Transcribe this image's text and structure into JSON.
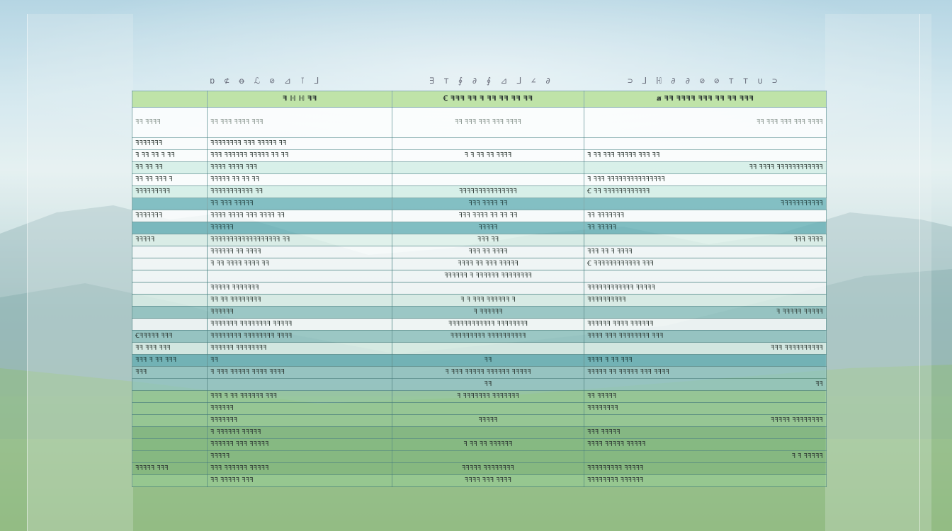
{
  "header": {
    "labels": [
      "ɒ ⊄ ꝋ ℒ ⊘ ⊿ ⊺ ⅃",
      "∃ ⊤ ∮ ∂ ∮ ⊿ ⅃ ∠ ∂",
      "⊃ ⅃ ℍ ∂ ∂ ⊘ ⊘ ⊤ ⊤ ∪ ⊃"
    ]
  },
  "table": {
    "head": [
      "ꟻ ℍ ℍ ꟻꟻ",
      "Ꞓ ꟻꟻꟻ ꟻꟻ ꟻ ꟻꟻ ꟻꟻ ꟻꟻ ꟻꟻ",
      "ⱥ ꟻꟻ ꟻꟻꟻꟻ ꟻꟻꟻ ꟻꟻ ꟻꟻ ꟻꟻꟻ"
    ],
    "rows": [
      {
        "style": "tall",
        "cells": [
          "ꟻꟻ ꟻꟻꟻꟻ",
          "ꟻꟻ ꟻꟻꟻ ꟻꟻꟻꟻ ꟻꟻꟻ",
          "ꟻꟻ ꟻꟻꟻ ꟻꟻꟻ ꟻꟻꟻ ꟻꟻꟻꟻ",
          "ꟻꟻ ꟻꟻꟻ ꟻꟻꟻ ꟻꟻꟻ ꟻꟻꟻꟻ"
        ]
      },
      {
        "style": "white",
        "cells": [
          "ꟻꟻꟻꟻꟻꟻꟻ",
          "ꟻꟻꟻꟻꟻꟻꟻꟻ ꟻꟻꟻ ꟻꟻꟻꟻꟻ ꟻꟻ",
          "",
          ""
        ]
      },
      {
        "style": "white",
        "cells": [
          "ꟻ ꟻꟻ ꟻꟻ ꟻ ꟻꟻ",
          "ꟻꟻꟻ ꟻꟻꟻꟻꟻꟻ ꟻꟻꟻꟻꟻ ꟻꟻ ꟻꟻ",
          "ꟻ ꟻ ꟻꟻ ꟻꟻ ꟻꟻꟻꟻ",
          "ꟻ ꟻꟻ ꟻꟻꟻ ꟻꟻꟻꟻꟻ ꟻꟻꟻ ꟻꟻ"
        ]
      },
      {
        "style": "mint",
        "cells": [
          "ꟻꟻ ꟻꟻ ꟻꟻ",
          "ꟻꟻꟻꟻ ꟻꟻꟻꟻ ꟻꟻꟻ",
          "",
          "ꟻꟻ ꟻꟻꟻꟻ ꟻꟻꟻꟻꟻꟻꟻꟻꟻꟻꟻꟻ"
        ]
      },
      {
        "style": "white",
        "cells": [
          "ꟻꟻ ꟻꟻ ꟻꟻꟻ ꟻ",
          "ꟻꟻꟻꟻꟻ ꟻꟻ ꟻꟻ ꟻꟻ",
          "",
          "ꟻ ꟻꟻꟻ ꟻꟻꟻꟻꟻꟻꟻꟻꟻꟻꟻꟻꟻꟻꟻ"
        ]
      },
      {
        "style": "mint",
        "cells": [
          "ꟻꟻꟻꟻꟻꟻꟻꟻꟻ",
          "ꟻꟻꟻꟻꟻꟻꟻꟻꟻꟻꟻ ꟻꟻ",
          "ꟻꟻꟻꟻꟻꟻꟻꟻꟻꟻꟻꟻꟻꟻꟻ",
          "Ꞓ ꟻꟻ ꟻꟻꟻꟻꟻꟻꟻꟻꟻꟻꟻꟻ"
        ]
      },
      {
        "style": "teal",
        "cells": [
          "",
          "ꟻꟻ ꟻꟻꟻ ꟻꟻꟻꟻꟻ",
          "ꟻꟻꟻ ꟻꟻꟻꟻ ꟻꟻ",
          "ꟻꟻꟻꟻꟻꟻꟻꟻꟻꟻꟻ"
        ]
      },
      {
        "style": "white",
        "cells": [
          "ꟻꟻꟻꟻꟻꟻꟻ",
          "ꟻꟻꟻꟻ ꟻꟻꟻꟻ ꟻꟻꟻ ꟻꟻꟻꟻ ꟻꟻ",
          "ꟻꟻꟻ ꟻꟻꟻꟻ ꟻꟻ ꟻꟻ ꟻꟻ",
          "ꟻꟻ ꟻꟻꟻꟻꟻꟻꟻ"
        ]
      },
      {
        "style": "teal",
        "cells": [
          "",
          "ꟻꟻꟻꟻꟻꟻ",
          "ꟻꟻꟻꟻꟻ",
          "ꟻꟻ ꟻꟻꟻꟻꟻ"
        ]
      },
      {
        "style": "pale",
        "cells": [
          "ꟻꟻꟻꟻꟻ",
          "ꟻꟻꟻꟻꟻꟻꟻꟻꟻꟻꟻꟻꟻꟻꟻꟻꟻꟻ ꟻꟻ",
          "ꟻꟻꟻ ꟻꟻ",
          "ꟻꟻꟻ ꟻꟻꟻꟻ"
        ]
      },
      {
        "style": "white",
        "cells": [
          "",
          "ꟻꟻꟻꟻꟻꟻ ꟻꟻ ꟻꟻꟻꟻ",
          "ꟻꟻꟻ ꟻꟻ ꟻꟻꟻꟻ",
          "ꟻꟻꟻ ꟻꟻ ꟻ ꟻꟻꟻꟻ"
        ]
      },
      {
        "style": "white",
        "cells": [
          "",
          "ꟻ ꟻꟻ ꟻꟻꟻꟻ ꟻꟻꟻꟻ ꟻꟻ",
          "ꟻꟻꟻꟻ ꟻꟻ ꟻꟻꟻ ꟻꟻꟻꟻꟻ",
          "Ꞓ ꟻꟻꟻꟻꟻꟻꟻꟻꟻꟻꟻꟻ ꟻꟻꟻ"
        ]
      },
      {
        "style": "white",
        "cells": [
          "",
          "",
          "ꟻꟻꟻꟻꟻꟻ ꟻ ꟻꟻꟻꟻꟻꟻ ꟻꟻꟻꟻꟻꟻꟻꟻ",
          ""
        ]
      },
      {
        "style": "white",
        "cells": [
          "",
          "ꟻꟻꟻꟻꟻ ꟻꟻꟻꟻꟻꟻꟻ",
          "",
          "ꟻꟻꟻꟻꟻꟻꟻꟻꟻꟻꟻꟻ ꟻꟻꟻꟻꟻ"
        ]
      },
      {
        "style": "pale",
        "cells": [
          "",
          "ꟻꟻ ꟻꟻ ꟻꟻꟻꟻꟻꟻꟻꟻ",
          "ꟻ ꟻ ꟻꟻꟻ ꟻꟻꟻꟻꟻꟻ ꟻ",
          "ꟻꟻꟻꟻꟻꟻꟻꟻꟻꟻ"
        ]
      },
      {
        "style": "teal2",
        "cells": [
          "",
          "ꟻꟻꟻꟻꟻꟻ",
          "ꟻ ꟻꟻꟻꟻꟻꟻ",
          "ꟻ ꟻꟻꟻꟻꟻ ꟻꟻꟻꟻꟻ"
        ]
      },
      {
        "style": "white",
        "cells": [
          "",
          "ꟻꟻꟻꟻꟻꟻꟻ ꟻꟻꟻꟻꟻꟻꟻꟻ ꟻꟻꟻꟻꟻ",
          "ꟻꟻꟻꟻꟻꟻꟻꟻꟻꟻꟻꟻ ꟻꟻꟻꟻꟻꟻꟻꟻ",
          "ꟻꟻꟻꟻꟻꟻ ꟻꟻꟻꟻ ꟻꟻꟻꟻꟻꟻ"
        ]
      },
      {
        "style": "teal2",
        "cells": [
          "Ꞓꟻꟻꟻꟻꟻ ꟻꟻꟻ",
          "ꟻꟻꟻꟻꟻꟻꟻꟻ ꟻꟻꟻꟻꟻꟻꟻꟻ ꟻꟻꟻꟻ",
          "ꟻꟻꟻꟻꟻꟻꟻꟻꟻ ꟻꟻꟻꟻꟻꟻꟻꟻꟻꟻ",
          "ꟻꟻꟻꟻ ꟻꟻꟻ ꟻꟻꟻꟻꟻꟻꟻꟻ ꟻꟻꟻ"
        ]
      },
      {
        "style": "pale",
        "cells": [
          "ꟻꟻ ꟻꟻꟻ ꟻꟻꟻ",
          "ꟻꟻꟻꟻꟻꟻ ꟻꟻꟻꟻꟻꟻꟻꟻ",
          "",
          "ꟻꟻꟻ ꟻꟻꟻꟻꟻꟻꟻꟻꟻꟻ"
        ]
      },
      {
        "style": "teal",
        "cells": [
          "ꟻꟻꟻ ꟻ ꟻꟻ ꟻꟻꟻ",
          "ꟻꟻ",
          "ꟻꟻ",
          "ꟻꟻꟻꟻ ꟻ ꟻꟻ ꟻꟻꟻ"
        ]
      },
      {
        "style": "teal2",
        "cells": [
          "ꟻꟻꟻ",
          "ꟻ ꟻꟻꟻ ꟻꟻꟻꟻꟻ ꟻꟻꟻꟻ ꟻꟻꟻꟻ",
          "ꟻ ꟻꟻꟻ ꟻꟻꟻꟻꟻ ꟻꟻꟻꟻꟻꟻ ꟻꟻꟻꟻꟻ",
          "ꟻꟻꟻꟻꟻ ꟻꟻ ꟻꟻꟻꟻꟻ ꟻꟻꟻ ꟻꟻꟻꟻ"
        ]
      },
      {
        "style": "teal2",
        "cells": [
          "",
          "",
          "ꟻꟻ",
          "ꟻꟻ"
        ]
      },
      {
        "style": "green",
        "cells": [
          "",
          "ꟻꟻꟻ ꟻ ꟻꟻ ꟻꟻꟻꟻꟻꟻ ꟻꟻꟻ",
          "ꟻ ꟻꟻꟻꟻꟻꟻꟻ ꟻꟻꟻꟻꟻꟻꟻ",
          "ꟻꟻ ꟻꟻꟻꟻꟻ"
        ]
      },
      {
        "style": "green",
        "cells": [
          "",
          "ꟻꟻꟻꟻꟻꟻ",
          "",
          "ꟻꟻꟻꟻꟻꟻꟻꟻ"
        ]
      },
      {
        "style": "green",
        "cells": [
          "",
          "ꟻꟻꟻꟻꟻꟻꟻ",
          "ꟻꟻꟻꟻꟻ",
          "ꟻꟻꟻꟻꟻ ꟻꟻꟻꟻꟻꟻꟻꟻ"
        ]
      },
      {
        "style": "green2",
        "cells": [
          "",
          "ꟻ ꟻꟻꟻꟻꟻꟻ ꟻꟻꟻꟻꟻ",
          "",
          "ꟻꟻꟻ ꟻꟻꟻꟻꟻ"
        ]
      },
      {
        "style": "green2",
        "cells": [
          "",
          "ꟻꟻꟻꟻꟻꟻ ꟻꟻꟻ ꟻꟻꟻꟻꟻ",
          "ꟻ ꟻꟻ ꟻꟻ ꟻꟻꟻꟻꟻꟻ",
          "ꟻꟻꟻꟻ ꟻꟻꟻꟻꟻ ꟻꟻꟻꟻꟻ"
        ]
      },
      {
        "style": "green2",
        "cells": [
          "",
          "ꟻꟻꟻꟻꟻ",
          "",
          "ꟻ ꟻ ꟻꟻꟻꟻꟻ"
        ]
      },
      {
        "style": "green2",
        "cells": [
          "ꟻꟻꟻꟻꟻ ꟻꟻꟻ",
          "ꟻꟻꟻ ꟻꟻꟻꟻꟻꟻ ꟻꟻꟻꟻꟻ",
          "ꟻꟻꟻꟻꟻ ꟻꟻꟻꟻꟻꟻꟻꟻ",
          "ꟻꟻꟻꟻꟻꟻꟻꟻꟻ ꟻꟻꟻꟻꟻ"
        ]
      },
      {
        "style": "green",
        "cells": [
          "",
          "ꟻꟻ ꟻꟻꟻꟻꟻ ꟻꟻꟻ",
          "ꟻꟻꟻꟻ ꟻꟻꟻ ꟻꟻꟻꟻ",
          "ꟻꟻꟻꟻꟻꟻꟻꟻ ꟻꟻꟻꟻꟻꟻ"
        ]
      }
    ]
  }
}
